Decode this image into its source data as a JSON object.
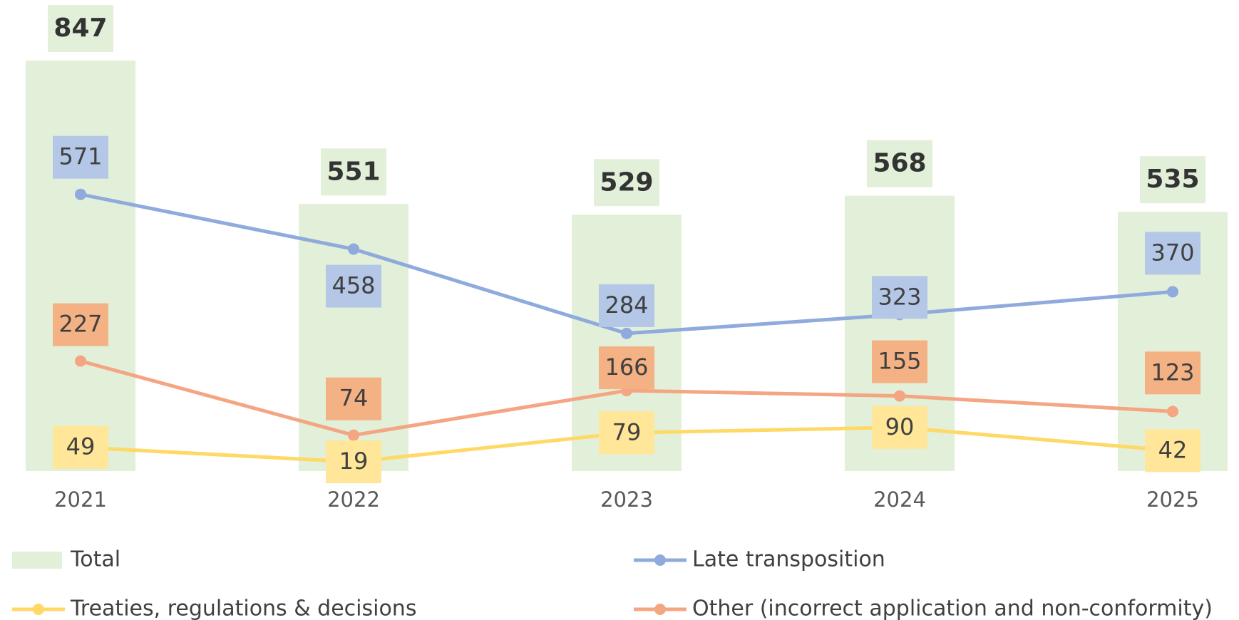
{
  "chart_data": {
    "type": "bar",
    "categories": [
      "2021",
      "2022",
      "2023",
      "2024",
      "2025"
    ],
    "legend": "bottom",
    "series": [
      {
        "name": "Total",
        "type": "bar",
        "color": "#e2efd9",
        "values": [
          847,
          551,
          529,
          568,
          535
        ]
      },
      {
        "name": "Late transposition",
        "type": "line",
        "color": "#8faadc",
        "label_color": "#b4c7e7",
        "values": [
          571,
          458,
          284,
          323,
          370
        ]
      },
      {
        "name": "Treaties, regulations & decisions",
        "type": "line",
        "color": "#ffd966",
        "label_color": "#ffe699",
        "values": [
          49,
          19,
          79,
          90,
          42
        ]
      },
      {
        "name": "Other (incorrect application and non-conformity)",
        "type": "line",
        "color": "#f4a582",
        "label_color": "#f4b183",
        "values": [
          227,
          74,
          166,
          155,
          123
        ]
      }
    ]
  }
}
